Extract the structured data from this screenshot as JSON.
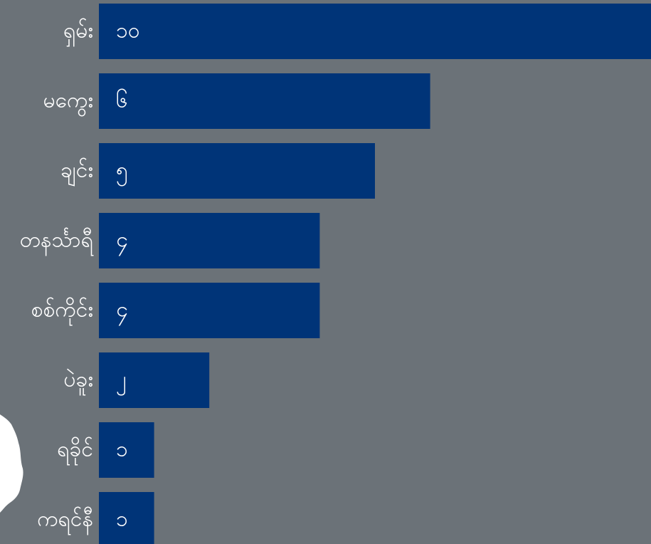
{
  "colors": {
    "background": "#6b7278",
    "bar": "#003478",
    "label": "#ffffff",
    "map_fill": "#ffffff"
  },
  "chart_data": {
    "type": "bar",
    "orientation": "horizontal",
    "categories": [
      "ရှမ်း",
      "မကွေး",
      "ချင်း",
      "တနင်္သာရီ",
      "စစ်ကိုင်း",
      "ပဲခူး",
      "ရခိုင်",
      "ကရင်နီ"
    ],
    "values": [
      10,
      6,
      5,
      4,
      4,
      2,
      1,
      1
    ],
    "value_labels": [
      "၁၀",
      "၆",
      "၅",
      "၄",
      "၄",
      "၂",
      "၁",
      "၁"
    ],
    "title": "",
    "xlabel": "",
    "ylabel": "",
    "xlim": [
      0,
      10
    ],
    "grid": false,
    "legend": "none"
  }
}
